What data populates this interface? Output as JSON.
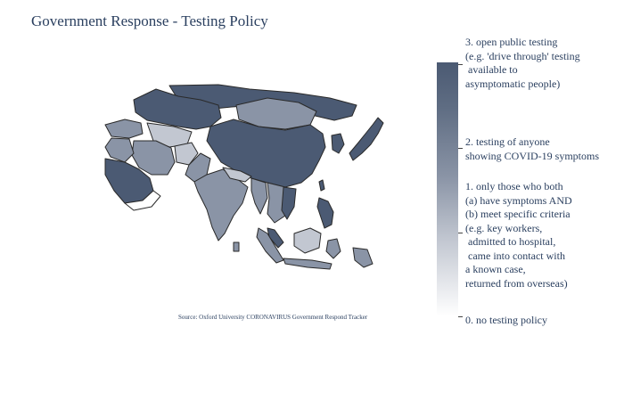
{
  "title": "Government Response - Testing Policy",
  "source": "Source:  Oxford University CORONAVIRUS Government Respond Tracker",
  "colors": {
    "level3": "#4b5a73",
    "level2": "#8a94a6",
    "level1": "#c2c7d1",
    "level0": "#ffffff",
    "border": "#2a2a2a"
  },
  "colorbar": {
    "levels": [
      {
        "value": 3,
        "label": "3. open public testing\n(e.g. 'drive through' testing\n available to\nasymptomatic people)"
      },
      {
        "value": 2,
        "label": "2. testing of anyone\nshowing COVID-19 symptoms"
      },
      {
        "value": 1,
        "label": "1. only those who both\n(a) have symptoms AND\n(b) meet specific criteria\n(e.g. key workers,\n admitted to hospital,\n came into contact with\na known case,\nreturned from overseas)"
      },
      {
        "value": 0,
        "label": "0. no testing policy"
      }
    ]
  }
}
